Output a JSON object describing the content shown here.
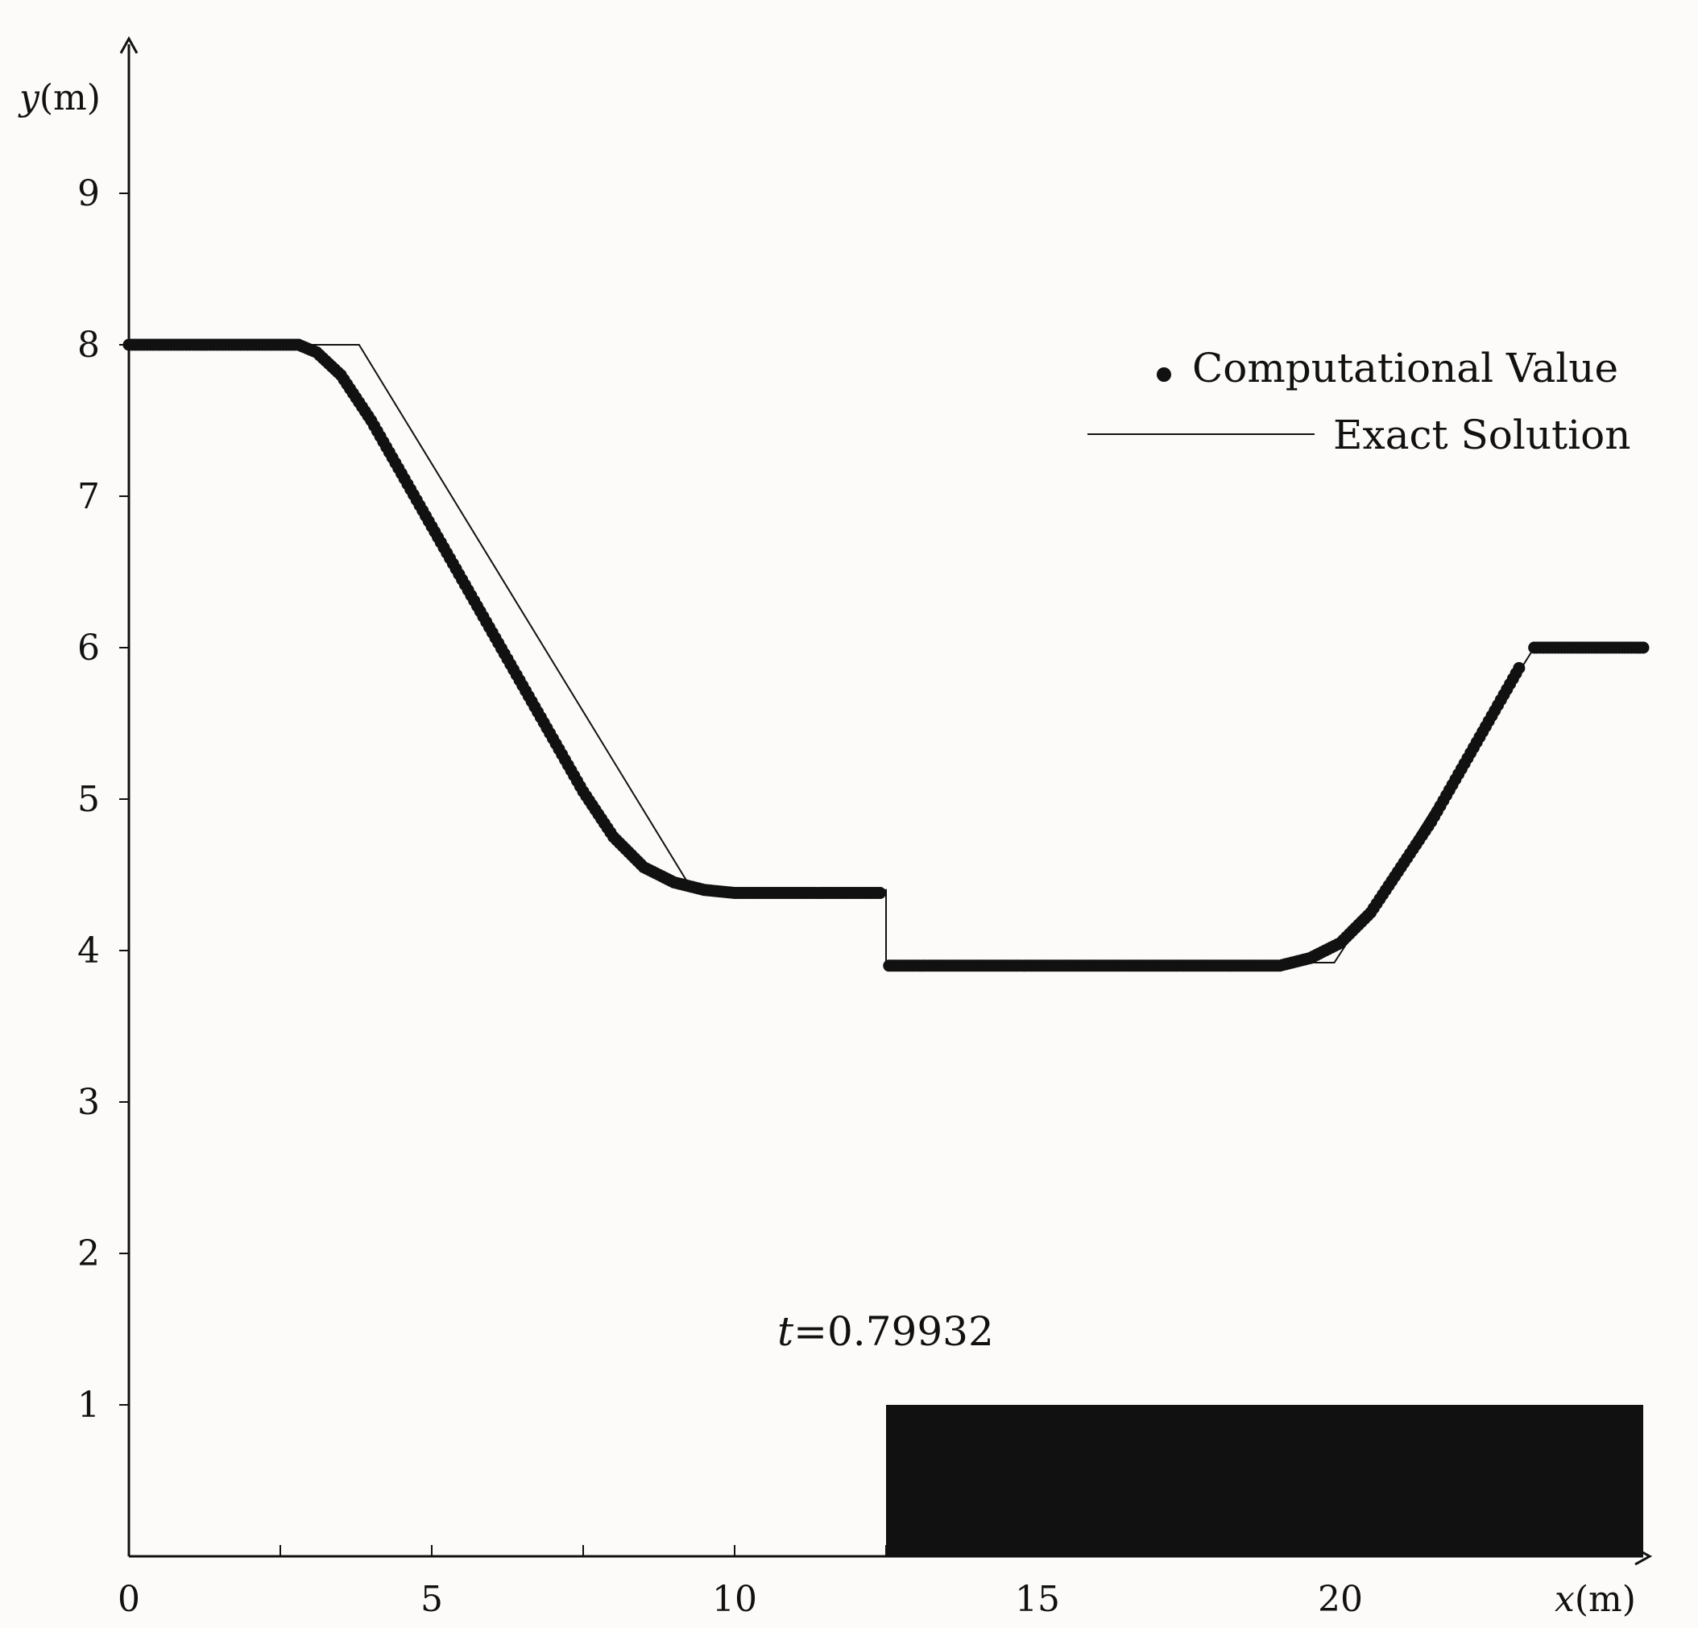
{
  "chart_data": {
    "type": "scatter",
    "xlabel": {
      "var": "x",
      "unit": "(m)"
    },
    "ylabel": {
      "var": "y",
      "unit": "(m)"
    },
    "xlim": [
      0,
      25
    ],
    "ylim": [
      0,
      10
    ],
    "x_ticks": [
      0,
      5,
      10,
      15,
      20
    ],
    "x_minor_ticks": [
      2.5,
      7.5,
      12.5,
      17.5,
      22.5
    ],
    "y_ticks": [
      1,
      2,
      3,
      4,
      5,
      6,
      7,
      8,
      9
    ],
    "grid": false,
    "legend_position": "top-right",
    "annotation": {
      "var": "t",
      "text": "=0.79932"
    },
    "series": [
      {
        "name": "Computational Value",
        "style": "markers",
        "points": [
          [
            0,
            8.0
          ],
          [
            1,
            8.0
          ],
          [
            2,
            8.0
          ],
          [
            2.8,
            8.0
          ],
          [
            3.1,
            7.95
          ],
          [
            3.5,
            7.8
          ],
          [
            4,
            7.5
          ],
          [
            4.5,
            7.15
          ],
          [
            5,
            6.8
          ],
          [
            5.5,
            6.45
          ],
          [
            6,
            6.1
          ],
          [
            6.5,
            5.75
          ],
          [
            7,
            5.4
          ],
          [
            7.5,
            5.05
          ],
          [
            8,
            4.75
          ],
          [
            8.5,
            4.55
          ],
          [
            9,
            4.45
          ],
          [
            9.5,
            4.4
          ],
          [
            10,
            4.38
          ],
          [
            11,
            4.38
          ],
          [
            12,
            4.38
          ],
          [
            12.45,
            4.38
          ],
          [
            12.55,
            3.9
          ],
          [
            14,
            3.9
          ],
          [
            16,
            3.9
          ],
          [
            18,
            3.9
          ],
          [
            19,
            3.9
          ],
          [
            19.5,
            3.95
          ],
          [
            20,
            4.05
          ],
          [
            20.5,
            4.25
          ],
          [
            21,
            4.55
          ],
          [
            21.5,
            4.85
          ],
          [
            22,
            5.2
          ],
          [
            22.5,
            5.55
          ],
          [
            23,
            5.9
          ],
          [
            23.2,
            6.0
          ],
          [
            24,
            6.0
          ],
          [
            25,
            6.0
          ]
        ]
      },
      {
        "name": "Exact Solution",
        "style": "line",
        "points": [
          [
            0,
            8.0
          ],
          [
            3.8,
            8.0
          ],
          [
            9.3,
            4.4
          ],
          [
            12.5,
            4.4
          ],
          [
            12.5,
            3.92
          ],
          [
            19.9,
            3.92
          ],
          [
            21.0,
            4.6
          ],
          [
            23.2,
            6.0
          ],
          [
            25,
            6.0
          ]
        ]
      }
    ],
    "step_block": {
      "x_range": [
        12.5,
        25
      ],
      "y_range": [
        0,
        1
      ],
      "color": "#111111"
    }
  }
}
